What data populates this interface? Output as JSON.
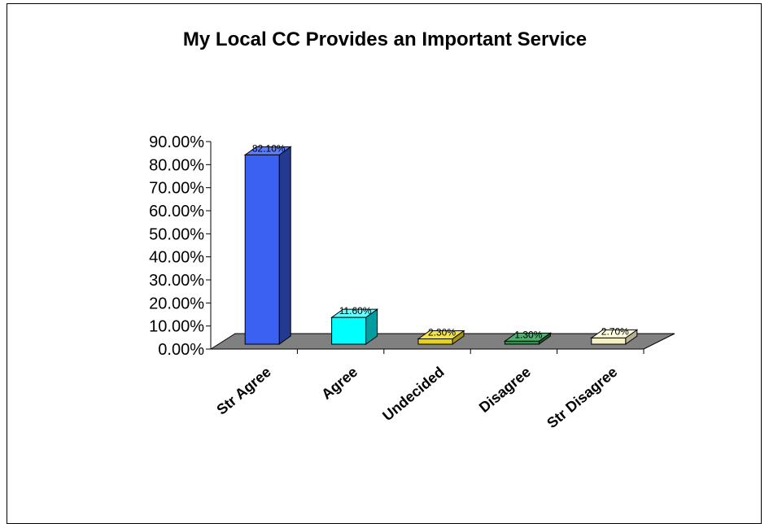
{
  "chart_data": {
    "type": "bar",
    "title": "My Local CC Provides an Important Service",
    "xlabel": "",
    "ylabel": "",
    "categories": [
      "Str Agree",
      "Agree",
      "Undecided",
      "Disagree",
      "Str Disagree"
    ],
    "values": [
      82.1,
      11.6,
      2.3,
      1.3,
      2.7
    ],
    "data_labels": [
      "82.10%",
      "11.60%",
      "2.30%",
      "1.30%",
      "2.70%"
    ],
    "ylim": [
      0,
      90
    ],
    "yticks": [
      "0.00%",
      "10.00%",
      "20.00%",
      "30.00%",
      "40.00%",
      "50.00%",
      "60.00%",
      "70.00%",
      "80.00%",
      "90.00%"
    ],
    "grid": false,
    "style": "3d",
    "colors": {
      "front": [
        "#3a62f2",
        "#00ffff",
        "#e6d21a",
        "#2f8f4e",
        "#f5f0c4"
      ],
      "side": [
        "#243a90",
        "#009ca0",
        "#a39412",
        "#1c5a31",
        "#b6b190"
      ],
      "top": [
        "#5b7dff",
        "#66ffff",
        "#f2e44a",
        "#4fae6e",
        "#fffde0"
      ],
      "floor": "#808080"
    }
  }
}
